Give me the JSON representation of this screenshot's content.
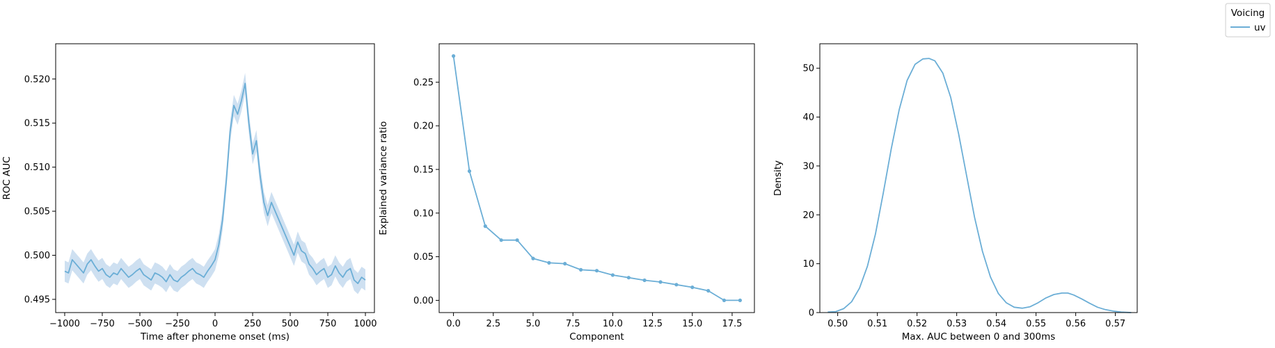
{
  "legend": {
    "title": "Voicing",
    "entries": [
      {
        "label": "uv",
        "color": "#6baed6"
      }
    ]
  },
  "colors": {
    "series": "#6baed6",
    "band": "#c6dbef"
  },
  "chart_data": [
    {
      "type": "line",
      "title": "",
      "xlabel": "Time after phoneme onset (ms)",
      "ylabel": "ROC AUC",
      "xlim": [
        -1060,
        1060
      ],
      "ylim": [
        0.4935,
        0.524
      ],
      "xticks": [
        -1000,
        -750,
        -500,
        -250,
        0,
        250,
        500,
        750,
        1000
      ],
      "xtick_labels": [
        "−1000",
        "−750",
        "−500",
        "−250",
        "0",
        "250",
        "500",
        "750",
        "1000"
      ],
      "yticks": [
        0.495,
        0.5,
        0.505,
        0.51,
        0.515,
        0.52
      ],
      "ytick_labels": [
        "0.495",
        "0.500",
        "0.505",
        "0.510",
        "0.515",
        "0.520"
      ],
      "confidence_band": true,
      "series": [
        {
          "name": "uv",
          "x": [
            -1000,
            -975,
            -950,
            -925,
            -900,
            -875,
            -850,
            -825,
            -800,
            -775,
            -750,
            -725,
            -700,
            -675,
            -650,
            -625,
            -600,
            -575,
            -550,
            -525,
            -500,
            -475,
            -450,
            -425,
            -400,
            -375,
            -350,
            -325,
            -300,
            -275,
            -250,
            -225,
            -200,
            -175,
            -150,
            -125,
            -100,
            -75,
            -50,
            -25,
            0,
            25,
            50,
            75,
            100,
            125,
            150,
            175,
            200,
            225,
            250,
            275,
            300,
            325,
            350,
            375,
            400,
            425,
            450,
            475,
            500,
            525,
            550,
            575,
            600,
            625,
            650,
            675,
            700,
            725,
            750,
            775,
            800,
            825,
            850,
            875,
            900,
            925,
            950,
            975,
            1000
          ],
          "y": [
            0.4982,
            0.498,
            0.4995,
            0.499,
            0.4985,
            0.498,
            0.499,
            0.4995,
            0.4988,
            0.4982,
            0.4985,
            0.4978,
            0.4975,
            0.498,
            0.4978,
            0.4985,
            0.498,
            0.4975,
            0.4978,
            0.4982,
            0.4985,
            0.4978,
            0.4975,
            0.4972,
            0.498,
            0.4978,
            0.4975,
            0.497,
            0.4978,
            0.4972,
            0.497,
            0.4975,
            0.4978,
            0.4982,
            0.4985,
            0.498,
            0.4978,
            0.4975,
            0.4982,
            0.4988,
            0.4995,
            0.5012,
            0.504,
            0.5085,
            0.514,
            0.517,
            0.516,
            0.5175,
            0.5195,
            0.515,
            0.5115,
            0.513,
            0.509,
            0.506,
            0.5045,
            0.506,
            0.505,
            0.504,
            0.503,
            0.502,
            0.501,
            0.5,
            0.5015,
            0.5005,
            0.5002,
            0.499,
            0.4985,
            0.4978,
            0.4982,
            0.4985,
            0.4975,
            0.4978,
            0.4988,
            0.498,
            0.4975,
            0.4982,
            0.4985,
            0.4972,
            0.4968,
            0.4975,
            0.4972
          ],
          "ci": 0.0012
        }
      ]
    },
    {
      "type": "line",
      "title": "",
      "xlabel": "Component",
      "ylabel": "Explained variance ratio",
      "xlim": [
        -0.9,
        18.9
      ],
      "ylim": [
        -0.014,
        0.294
      ],
      "xticks": [
        0,
        2.5,
        5,
        7.5,
        10,
        12.5,
        15,
        17.5
      ],
      "xtick_labels": [
        "0.0",
        "2.5",
        "5.0",
        "7.5",
        "10.0",
        "12.5",
        "15.0",
        "17.5"
      ],
      "yticks": [
        0.0,
        0.05,
        0.1,
        0.15,
        0.2,
        0.25
      ],
      "ytick_labels": [
        "0.00",
        "0.05",
        "0.10",
        "0.15",
        "0.20",
        "0.25"
      ],
      "markers": true,
      "series": [
        {
          "name": "uv",
          "x": [
            0,
            1,
            2,
            3,
            4,
            5,
            6,
            7,
            8,
            9,
            10,
            11,
            12,
            13,
            14,
            15,
            16,
            17,
            18
          ],
          "y": [
            0.28,
            0.148,
            0.085,
            0.069,
            0.069,
            0.048,
            0.043,
            0.042,
            0.035,
            0.034,
            0.029,
            0.026,
            0.023,
            0.021,
            0.018,
            0.015,
            0.011,
            0.0,
            0.0
          ]
        }
      ]
    },
    {
      "type": "line",
      "title": "",
      "xlabel": "Max. AUC between 0 and 300ms",
      "ylabel": "Density",
      "xlim": [
        0.4955,
        0.5755
      ],
      "ylim": [
        0,
        55
      ],
      "xticks": [
        0.5,
        0.51,
        0.52,
        0.53,
        0.54,
        0.55,
        0.56,
        0.57
      ],
      "xtick_labels": [
        "0.50",
        "0.51",
        "0.52",
        "0.53",
        "0.54",
        "0.55",
        "0.56",
        "0.57"
      ],
      "yticks": [
        0,
        10,
        20,
        30,
        40,
        50
      ],
      "ytick_labels": [
        "0",
        "10",
        "20",
        "30",
        "40",
        "50"
      ],
      "series": [
        {
          "name": "uv",
          "x": [
            0.4975,
            0.4995,
            0.5015,
            0.5035,
            0.5055,
            0.5075,
            0.5095,
            0.5115,
            0.5135,
            0.5155,
            0.5175,
            0.5195,
            0.5215,
            0.523,
            0.5245,
            0.5265,
            0.5285,
            0.5305,
            0.5325,
            0.5345,
            0.5365,
            0.5385,
            0.5405,
            0.5425,
            0.5445,
            0.5465,
            0.5485,
            0.5505,
            0.5525,
            0.5545,
            0.5565,
            0.558,
            0.5595,
            0.5615,
            0.5635,
            0.5655,
            0.5675,
            0.5695,
            0.5715,
            0.574
          ],
          "y": [
            0.1,
            0.2,
            0.8,
            2.2,
            5.0,
            9.5,
            16.0,
            24.5,
            33.5,
            41.5,
            47.5,
            50.8,
            51.9,
            52.0,
            51.5,
            49.0,
            44.0,
            36.5,
            28.0,
            19.5,
            12.5,
            7.3,
            3.9,
            2.0,
            1.1,
            0.9,
            1.2,
            2.0,
            3.0,
            3.7,
            4.0,
            4.0,
            3.6,
            2.8,
            1.9,
            1.1,
            0.6,
            0.3,
            0.1,
            0.0
          ]
        }
      ]
    }
  ]
}
